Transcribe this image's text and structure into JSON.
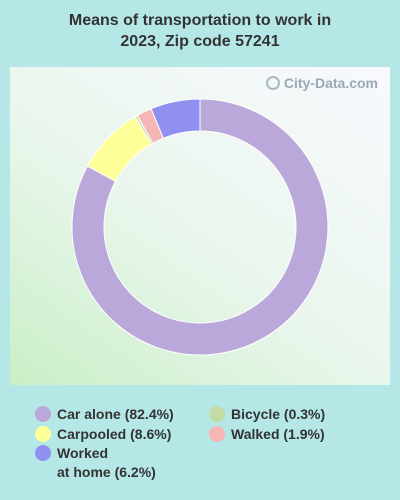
{
  "title_line1": "Means of transportation to work in",
  "title_line2": "2023, Zip code 57241",
  "watermark": "City-Data.com",
  "chart_data": {
    "type": "pie",
    "donut": true,
    "title": "Means of transportation to work in 2023, Zip code 57241",
    "legend_placement": "bottom",
    "series": [
      {
        "name": "Car alone",
        "value": 82.4,
        "label": "Car alone (82.4%)",
        "color": "#bba8da"
      },
      {
        "name": "Carpooled",
        "value": 8.6,
        "label": "Carpooled (8.6%)",
        "color": "#ffff99"
      },
      {
        "name": "Bicycle",
        "value": 0.3,
        "label": "Bicycle (0.3%)",
        "color": "#c5dba6"
      },
      {
        "name": "Walked",
        "value": 1.9,
        "label": "Walked (1.9%)",
        "color": "#f7b6b6"
      },
      {
        "name": "Worked at home",
        "value": 6.2,
        "label_line1": "Worked",
        "label_line2": "at home (6.2%)",
        "color": "#9090f0"
      }
    ]
  }
}
